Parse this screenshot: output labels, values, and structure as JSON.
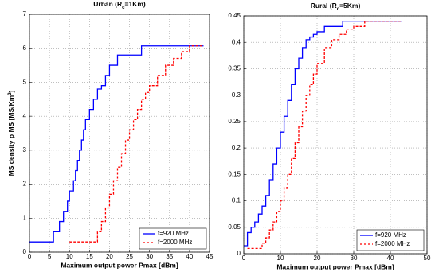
{
  "chart_data": [
    {
      "type": "line",
      "step": true,
      "title": [
        "Urban (R",
        "c",
        "=1Km)"
      ],
      "ylabel": [
        "MS density  ρ MS [MS/Km",
        "2",
        "]"
      ],
      "xlabel": "Maximum output power Pmax [dBm]",
      "xlim": [
        0,
        45
      ],
      "xticks": [
        0,
        5,
        10,
        15,
        20,
        25,
        30,
        35,
        40,
        45
      ],
      "ylim": [
        0,
        7
      ],
      "yticks": [
        0,
        1,
        2,
        3,
        4,
        5,
        6,
        7
      ],
      "grid": true,
      "legend": "lower right",
      "series": [
        {
          "name": "f=920 MHz",
          "color": "#0000ff",
          "dash": false,
          "x": [
            0,
            6,
            7.5,
            8.5,
            9.5,
            10,
            11,
            11.5,
            12,
            12.5,
            13,
            13.5,
            14,
            15,
            16,
            17,
            18,
            19,
            20,
            22,
            24,
            28,
            43.5
          ],
          "values": [
            0.3,
            0.6,
            0.9,
            1.2,
            1.5,
            1.8,
            2.1,
            2.4,
            2.7,
            3.0,
            3.3,
            3.6,
            3.9,
            4.2,
            4.5,
            4.8,
            4.9,
            5.2,
            5.5,
            5.8,
            5.8,
            6.07,
            6.07
          ]
        },
        {
          "name": "f=2000 MHz",
          "color": "#ff0000",
          "dash": true,
          "x": [
            10,
            17,
            18,
            19,
            20,
            21,
            22,
            23,
            24,
            25,
            26,
            27,
            28,
            29,
            30,
            32,
            34,
            36,
            38,
            40,
            43.5
          ],
          "values": [
            0.3,
            0.6,
            0.9,
            1.3,
            1.7,
            2.1,
            2.5,
            2.9,
            3.3,
            3.6,
            3.9,
            4.2,
            4.5,
            4.7,
            4.9,
            5.2,
            5.5,
            5.7,
            5.9,
            6.07,
            6.07
          ]
        }
      ]
    },
    {
      "type": "line",
      "step": true,
      "title": [
        "Rural (R",
        "c",
        "=5Km)"
      ],
      "xlabel": "Maximum output power Pmax [dBm]",
      "xlim": [
        0,
        50
      ],
      "xticks": [
        0,
        10,
        20,
        30,
        40,
        50
      ],
      "ylim": [
        0,
        0.45
      ],
      "yticks": [
        0,
        0.05,
        0.1,
        0.15,
        0.2,
        0.25,
        0.3,
        0.35,
        0.4,
        0.45
      ],
      "grid": true,
      "legend": "lower right",
      "series": [
        {
          "name": "f=920 MHz",
          "color": "#0000ff",
          "dash": false,
          "x": [
            0,
            1,
            2,
            3,
            4,
            5,
            6,
            7,
            8,
            9,
            10,
            11,
            12,
            13,
            14,
            15,
            16,
            17,
            18,
            19,
            20,
            22,
            24,
            27,
            43
          ],
          "values": [
            0.015,
            0.04,
            0.05,
            0.06,
            0.075,
            0.09,
            0.11,
            0.14,
            0.17,
            0.2,
            0.23,
            0.26,
            0.29,
            0.32,
            0.35,
            0.37,
            0.39,
            0.405,
            0.41,
            0.415,
            0.42,
            0.43,
            0.43,
            0.44,
            0.44
          ]
        },
        {
          "name": "f=2000 MHz",
          "color": "#ff0000",
          "dash": true,
          "x": [
            1,
            5,
            6,
            7,
            8,
            9,
            10,
            11,
            12,
            13,
            14,
            15,
            16,
            17,
            18,
            19,
            20,
            22,
            24,
            26,
            28,
            30,
            33,
            43
          ],
          "values": [
            0.01,
            0.02,
            0.03,
            0.045,
            0.06,
            0.08,
            0.1,
            0.125,
            0.15,
            0.18,
            0.21,
            0.24,
            0.27,
            0.3,
            0.32,
            0.34,
            0.36,
            0.39,
            0.405,
            0.415,
            0.425,
            0.43,
            0.44,
            0.44
          ]
        }
      ]
    }
  ]
}
